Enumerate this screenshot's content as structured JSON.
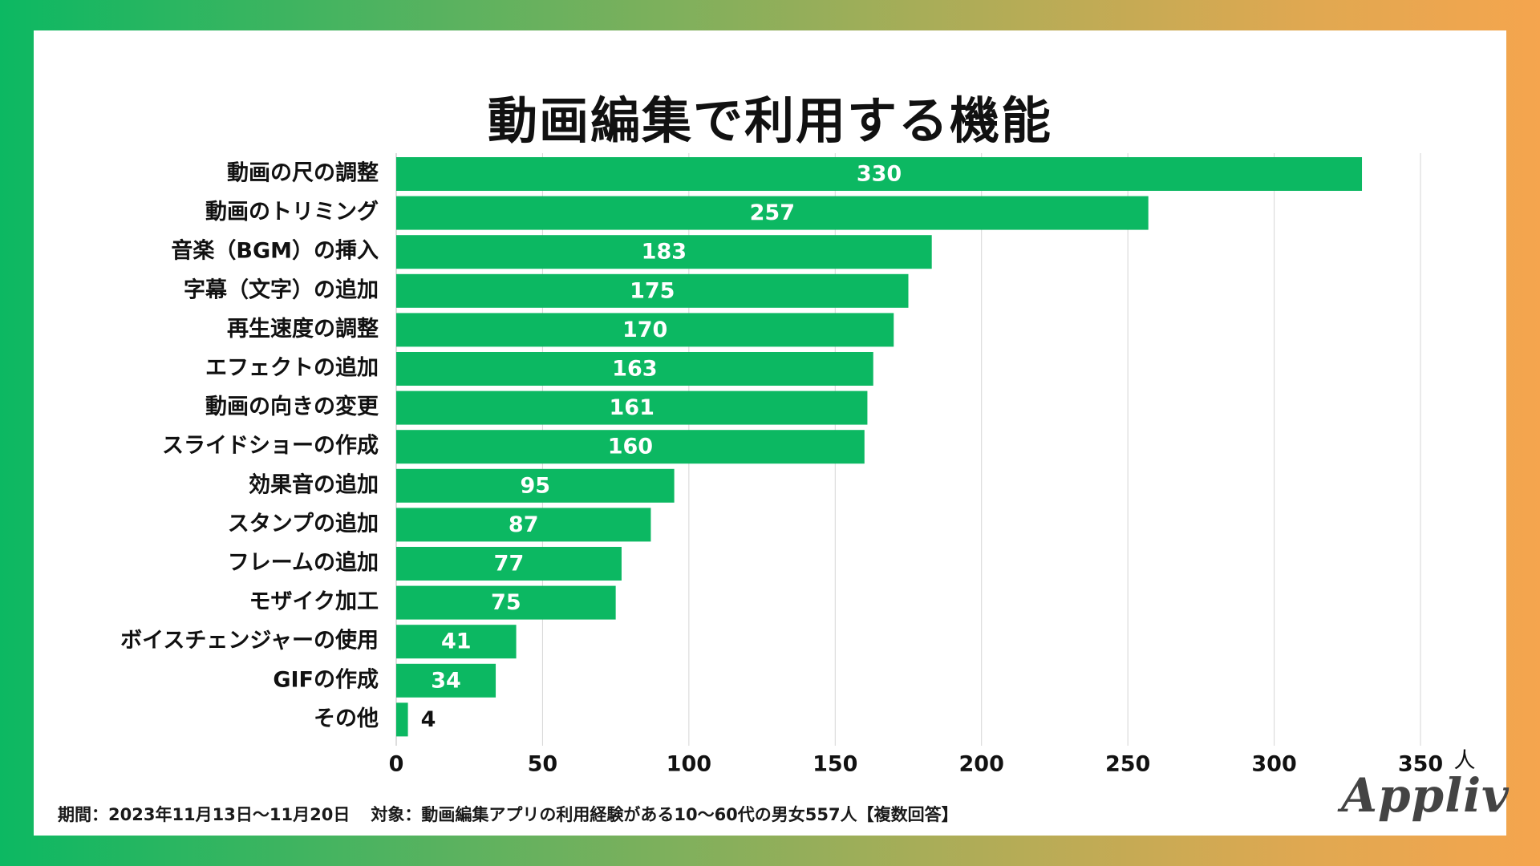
{
  "brand": {
    "logo_text": "Appliv",
    "accent": "#0cb862",
    "bar_color": "#0cb862"
  },
  "footnote": {
    "period": "期間：2023年11月13日〜11月20日",
    "target": "対象：動画編集アプリの利用経験がある10〜60代の男女557人【複数回答】"
  },
  "chart_data": {
    "type": "bar",
    "orientation": "horizontal",
    "title": "動画編集で利用する機能",
    "unit_label": "人",
    "categories": [
      "動画の尺の調整",
      "動画のトリミング",
      "音楽（BGM）の挿入",
      "字幕（文字）の追加",
      "再生速度の調整",
      "エフェクトの追加",
      "動画の向きの変更",
      "スライドショーの作成",
      "効果音の追加",
      "スタンプの追加",
      "フレームの追加",
      "モザイク加工",
      "ボイスチェンジャーの使用",
      "GIFの作成",
      "その他"
    ],
    "values": [
      330,
      257,
      183,
      175,
      170,
      163,
      161,
      160,
      95,
      87,
      77,
      75,
      41,
      34,
      4
    ],
    "xlim": [
      0,
      350
    ],
    "xticks": [
      0,
      50,
      100,
      150,
      200,
      250,
      300,
      350
    ],
    "grid": true,
    "data_labels": true
  }
}
